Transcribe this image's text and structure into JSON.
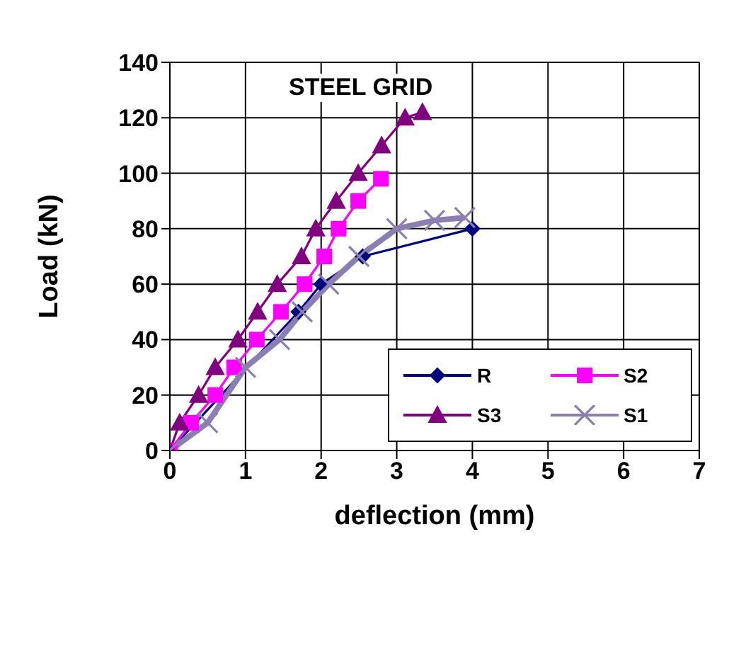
{
  "chart_data": {
    "type": "line",
    "title": "STEEL GRID",
    "xlabel": "deflection (mm)",
    "ylabel": "Load (kN)",
    "xlim": [
      0,
      7
    ],
    "xticks": [
      0,
      1,
      2,
      3,
      4,
      5,
      6,
      7
    ],
    "ylim": [
      0,
      140
    ],
    "yticks": [
      0,
      20,
      40,
      60,
      80,
      100,
      120,
      140
    ],
    "grid": true,
    "legend": "bottom right",
    "series": [
      {
        "name": "R",
        "color": "#000080",
        "marker": "diamond",
        "x": [
          0,
          1.7,
          2.0,
          2.55,
          4.0
        ],
        "values": [
          0,
          50,
          60,
          70,
          80
        ]
      },
      {
        "name": "S2",
        "color": "#ff00ff",
        "marker": "square",
        "x": [
          0,
          0.28,
          0.6,
          0.85,
          1.15,
          1.47,
          1.78,
          2.04,
          2.23,
          2.49,
          2.79
        ],
        "values": [
          0,
          10,
          20,
          30,
          40,
          50,
          60,
          70,
          80,
          90,
          98
        ]
      },
      {
        "name": "S3",
        "color": "#800080",
        "marker": "triangle",
        "x": [
          0,
          0.13,
          0.38,
          0.6,
          0.9,
          1.16,
          1.42,
          1.74,
          1.93,
          2.2,
          2.49,
          2.8,
          3.11,
          3.34
        ],
        "values": [
          0,
          10,
          20,
          30,
          40,
          50,
          60,
          70,
          80,
          90,
          100,
          110,
          120,
          122
        ]
      },
      {
        "name": "S1",
        "color": "#8a7fb0",
        "marker": "cross",
        "x": [
          0,
          0.5,
          1.0,
          1.45,
          1.75,
          2.1,
          2.5,
          3.0,
          3.5,
          3.9
        ],
        "values": [
          0,
          10,
          30,
          40,
          50,
          60,
          70,
          80,
          83,
          84
        ]
      }
    ]
  }
}
